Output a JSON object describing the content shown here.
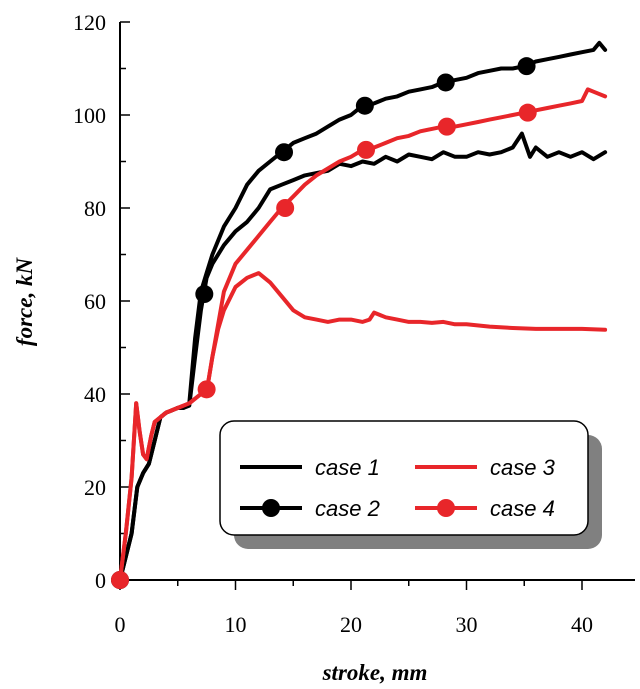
{
  "chart_data": {
    "type": "line",
    "xlabel": "stroke, mm",
    "ylabel": "force, kN",
    "xlim": [
      0,
      44
    ],
    "ylim": [
      0,
      120
    ],
    "xticks": [
      0,
      10,
      20,
      30,
      40
    ],
    "yticks": [
      0,
      20,
      40,
      60,
      80,
      100,
      120
    ],
    "grid": false,
    "legend_position": "lower-right",
    "series": [
      {
        "name": "case 1",
        "color": "#000000",
        "marker": false,
        "x": [
          0,
          0.5,
          1,
          1.5,
          2,
          2.5,
          3,
          3.5,
          4,
          4.5,
          5,
          5.5,
          6,
          6.5,
          7,
          7.5,
          8,
          9,
          10,
          11,
          12,
          13,
          14,
          15,
          16,
          17,
          18,
          19,
          20,
          21,
          22,
          23,
          24,
          25,
          26,
          27,
          28,
          29,
          30,
          31,
          32,
          33,
          34,
          34.8,
          35.5,
          36,
          37,
          38,
          39,
          40,
          41,
          42
        ],
        "y": [
          0,
          5,
          10,
          20,
          23,
          25,
          30,
          35,
          36,
          36.5,
          37,
          37,
          37.5,
          48,
          58,
          65,
          68,
          72,
          75,
          77,
          80,
          84,
          85,
          86,
          87,
          87.5,
          88,
          89.5,
          89,
          90,
          89.5,
          91,
          90,
          91.5,
          91,
          90.5,
          92,
          91,
          91,
          92,
          91.5,
          92,
          93,
          96,
          91,
          93,
          91,
          92,
          91,
          92,
          90.5,
          92
        ]
      },
      {
        "name": "case 2",
        "color": "#000000",
        "marker": true,
        "x": [
          0,
          0.5,
          1,
          1.5,
          2,
          2.5,
          3,
          3.5,
          4,
          4.5,
          5,
          5.5,
          6,
          6.5,
          7,
          7.5,
          8,
          9,
          10,
          11,
          12,
          13,
          14,
          15,
          16,
          17,
          18,
          19,
          20,
          21,
          22,
          23,
          24,
          25,
          26,
          27,
          28,
          29,
          30,
          31,
          32,
          33,
          34,
          35,
          36,
          37,
          38,
          39,
          40,
          41,
          41.5,
          42
        ],
        "y": [
          0,
          5,
          10,
          20,
          23,
          25,
          30,
          35,
          36,
          36.5,
          37,
          37,
          38,
          52,
          62,
          66,
          70,
          76,
          80,
          85,
          88,
          90,
          92,
          94,
          95,
          96,
          97.5,
          99,
          100,
          102,
          102.5,
          103.5,
          104,
          105,
          105.5,
          106,
          107,
          107.5,
          108,
          109,
          109.5,
          110,
          110,
          110.5,
          111.5,
          112,
          112.5,
          113,
          113.5,
          114,
          115.5,
          114
        ]
      },
      {
        "name": "case 3",
        "color": "#e8262a",
        "marker": false,
        "x": [
          0,
          0.5,
          1,
          1.4,
          1.7,
          2,
          2.3,
          2.7,
          3,
          4,
          5,
          6,
          7,
          7.3,
          7.6,
          8,
          8.5,
          9,
          10,
          11,
          12,
          13,
          14,
          15,
          16,
          17,
          18,
          19,
          20,
          21,
          21.6,
          22,
          23,
          24,
          25,
          26,
          27,
          28,
          29,
          30,
          32,
          34,
          36,
          38,
          40,
          42
        ],
        "y": [
          0,
          10,
          22,
          38,
          32,
          27,
          26,
          31,
          34,
          36,
          37,
          38,
          40,
          41,
          42,
          48,
          54,
          58,
          63,
          65,
          66,
          64,
          61,
          58,
          56.5,
          56,
          55.5,
          56,
          56,
          55.5,
          56,
          57.5,
          56.5,
          56,
          55.5,
          55.5,
          55.3,
          55.5,
          55,
          55,
          54.5,
          54.2,
          54,
          54,
          54,
          53.8
        ]
      },
      {
        "name": "case 4",
        "color": "#e8262a",
        "marker": true,
        "x": [
          0,
          0.5,
          1,
          1.4,
          1.7,
          2,
          2.3,
          2.7,
          3,
          4,
          5,
          6,
          7,
          7.3,
          7.6,
          8,
          9,
          10,
          11,
          12,
          13,
          14,
          15,
          16,
          17,
          18,
          19,
          20,
          21,
          22,
          23,
          24,
          25,
          26,
          27,
          28,
          29,
          30,
          31,
          32,
          33,
          34,
          35,
          36,
          37,
          38,
          39,
          40,
          40.5,
          41,
          42
        ],
        "y": [
          0,
          10,
          22,
          38,
          32,
          27,
          26,
          31,
          34,
          36,
          37,
          38,
          40,
          41,
          42,
          48,
          62,
          68,
          71,
          74,
          77,
          80,
          82.5,
          85,
          87,
          88.5,
          90,
          91,
          92.5,
          93,
          94,
          95,
          95.5,
          96.5,
          97,
          97.5,
          97.5,
          98,
          98.5,
          99,
          99.5,
          100,
          100.5,
          101,
          101.5,
          102,
          102.5,
          103,
          105.5,
          105,
          104
        ]
      }
    ],
    "markers": {
      "case 2": {
        "x": [
          0,
          7.3,
          14.2,
          21.2,
          28.2,
          35.2
        ],
        "y": [
          0,
          61.5,
          92,
          102,
          107,
          110.5
        ]
      },
      "case 4": {
        "x": [
          0,
          7.5,
          14.3,
          21.3,
          28.3,
          35.3
        ],
        "y": [
          0,
          41,
          80,
          92.5,
          97.5,
          100.5
        ]
      }
    }
  }
}
